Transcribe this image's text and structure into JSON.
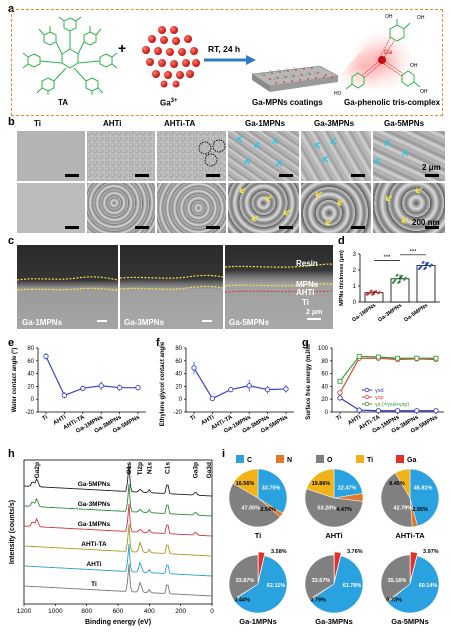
{
  "panel_letters": [
    "a",
    "b",
    "c",
    "d",
    "e",
    "f",
    "g",
    "h",
    "i"
  ],
  "a": {
    "ta_label": "TA",
    "ga_label": "Ga",
    "ga_sup": "3+",
    "plus": "+",
    "arrow_label": "RT, 24 h",
    "coating_label": "Ga-MPNs coatings",
    "complex_label": "Ga-phenolic tris-complex",
    "ga_center": "Ga",
    "oh_labels": [
      "OH",
      "OH",
      "HO",
      "OH",
      "OH"
    ]
  },
  "b": {
    "columns": [
      "Ti",
      "AHTi",
      "AHTi-TA",
      "Ga-1MPNs",
      "Ga-3MPNs",
      "Ga-5MPNs"
    ],
    "scale_top": "2 μm",
    "scale_bottom": "200 nm"
  },
  "c": {
    "samples": [
      "Ga-1MPNs",
      "Ga-3MPNs",
      "Ga-5MPNs"
    ],
    "layers": [
      "Resin",
      "MPNs",
      "AHTi",
      "Ti"
    ],
    "scale": "2 μm"
  },
  "chart_data": [
    {
      "panel": "d",
      "type": "bar",
      "ylabel": "MPNs thickness (μm)",
      "categories": [
        "Ga-1MPNs",
        "Ga-3MPNs",
        "Ga-5MPNs"
      ],
      "values": [
        0.58,
        1.45,
        2.28
      ],
      "errors": [
        0.12,
        0.25,
        0.22
      ],
      "ylim": [
        0,
        3
      ],
      "yticks": [
        0,
        1,
        2,
        3
      ],
      "significance": [
        "***",
        "***"
      ]
    },
    {
      "panel": "e",
      "type": "line",
      "ylabel": "Water contact angle (°)",
      "categories": [
        "Ti",
        "AHTi",
        "AHTi-TA",
        "Ga-1MPNs",
        "Ga-3MPNs",
        "Ga-5MPNs"
      ],
      "values": [
        67,
        6,
        17,
        21,
        18,
        18
      ],
      "errors": [
        5,
        5,
        4,
        7,
        5,
        3
      ],
      "ylim": [
        -20,
        80
      ],
      "yticks": [
        -20,
        0,
        20,
        40,
        60,
        80
      ]
    },
    {
      "panel": "f",
      "type": "line",
      "ylabel": "Ethylene glycol contact angle (°)",
      "categories": [
        "Ti",
        "AHTi",
        "AHTi-TA",
        "Ga-1MPNs",
        "Ga-3MPNs",
        "Ga-5MPNs"
      ],
      "values": [
        49,
        1,
        15,
        21,
        15,
        16
      ],
      "errors": [
        10,
        1,
        4,
        9,
        6,
        6
      ],
      "ylim": [
        -20,
        80
      ],
      "yticks": [
        -20,
        0,
        20,
        40,
        60,
        80
      ]
    },
    {
      "panel": "g",
      "type": "line",
      "ylabel": "Surface free energy (mJ/m²)",
      "categories": [
        "Ti",
        "AHTi",
        "AHTi-TA",
        "Ga-1MPNs",
        "Ga-3MPNs",
        "Ga-5MPNs"
      ],
      "series": [
        {
          "name": "γs d",
          "color": "#3a33c8",
          "values": [
            22,
            3,
            2,
            2,
            2,
            2
          ]
        },
        {
          "name": "γs p",
          "color": "#d94a3a",
          "values": [
            30,
            84,
            84,
            82,
            83,
            82
          ]
        },
        {
          "name": "γs (=γs d+γs p)",
          "color": "#3d9a3d",
          "values": [
            48,
            87,
            86,
            84,
            84,
            84
          ]
        }
      ],
      "ylim": [
        0,
        100
      ],
      "yticks": [
        0,
        20,
        40,
        60,
        80,
        100
      ],
      "legend": [
        "γ",
        "d",
        "γ",
        "p",
        "γ",
        "(=γ",
        "d",
        "+γ",
        "p",
        ")"
      ]
    },
    {
      "panel": "h",
      "type": "line",
      "xlabel": "Binding energy (eV)",
      "ylabel": "Intensity (counts/s)",
      "xlim": [
        1200,
        0
      ],
      "xticks": [
        1200,
        1000,
        800,
        600,
        400,
        200,
        0
      ],
      "series": [
        {
          "name": "Ga-5MPNs",
          "color": "#222222"
        },
        {
          "name": "Ga-3MPNs",
          "color": "#2e8b3a"
        },
        {
          "name": "Ga-1MPNs",
          "color": "#d8333a"
        },
        {
          "name": "AHTi-TA",
          "color": "#a49a2a"
        },
        {
          "name": "AHTi",
          "color": "#2aa0c8"
        },
        {
          "name": "Ti",
          "color": "#777777"
        }
      ],
      "peaks": [
        "Ga2p",
        "O1s",
        "Ti2p",
        "N1s",
        "C1s",
        "Ga3p",
        "Ga3d"
      ]
    },
    {
      "panel": "i",
      "type": "pie",
      "legend": [
        {
          "name": "C",
          "color": "#2aa2e0"
        },
        {
          "name": "N",
          "color": "#e07a2a"
        },
        {
          "name": "O",
          "color": "#808080"
        },
        {
          "name": "Ti",
          "color": "#f2b21a"
        },
        {
          "name": "Ga",
          "color": "#e0302a"
        }
      ],
      "pies": [
        {
          "title": "Ti",
          "values": {
            "C": 33.75,
            "N": 2.54,
            "O": 47.05,
            "Ti": 16.56,
            "Ga": 0
          },
          "labels": [
            "33.75%",
            "2.54%",
            "47.05%",
            "16.56%"
          ]
        },
        {
          "title": "AHTi",
          "values": {
            "C": 22.47,
            "N": 4.47,
            "O": 53.2,
            "Ti": 19.86,
            "Ga": 0
          },
          "labels": [
            "22.47%",
            "4.47%",
            "53.20%",
            "19.86%"
          ]
        },
        {
          "title": "AHTi-TA",
          "values": {
            "C": 45.81,
            "N": 2.95,
            "O": 42.79,
            "Ti": 8.45,
            "Ga": 0
          },
          "labels": [
            "45.81%",
            "2.95%",
            "42.79%",
            "8.45%"
          ]
        },
        {
          "title": "Ga-1MPNs",
          "values": {
            "C": 62.11,
            "N": 0.44,
            "O": 33.87,
            "Ti": 0,
            "Ga": 3.58
          },
          "labels": [
            "62.11%",
            "0.44%",
            "33.87%",
            "3.58%"
          ]
        },
        {
          "title": "Ga-3MPNs",
          "values": {
            "C": 61.78,
            "N": 0.79,
            "O": 33.67,
            "Ti": 0,
            "Ga": 3.76
          },
          "labels": [
            "61.78%",
            "0.79%",
            "33.67%",
            "3.76%"
          ]
        },
        {
          "title": "Ga-5MPNs",
          "values": {
            "C": 60.14,
            "N": 0.73,
            "O": 35.16,
            "Ti": 0,
            "Ga": 3.97
          },
          "labels": [
            "60.14%",
            "0.73%",
            "35.16%",
            "3.97%"
          ]
        }
      ]
    }
  ]
}
